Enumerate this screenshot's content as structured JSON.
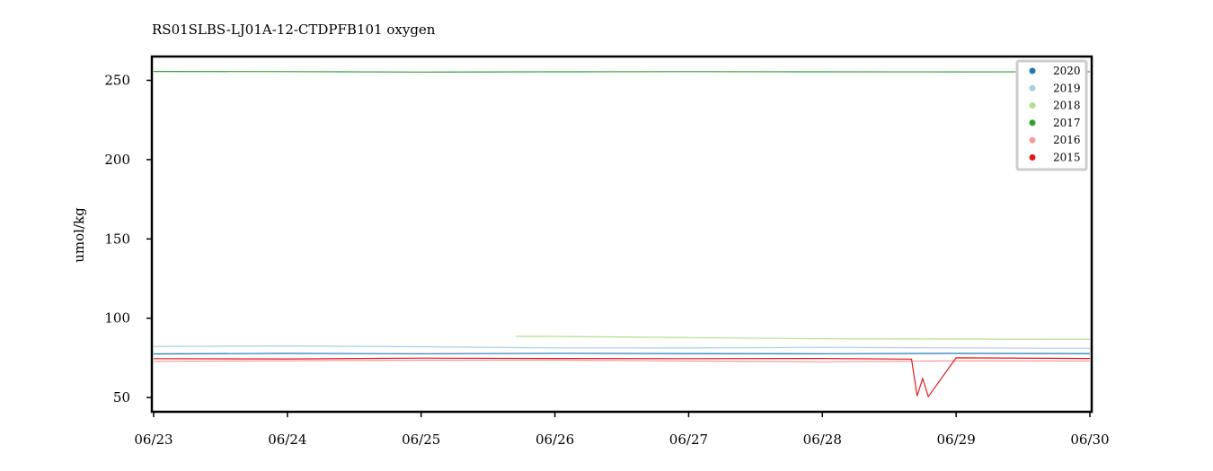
{
  "chart_data": {
    "type": "line",
    "title": "RS01SLBS-LJ01A-12-CTDPFB101 oxygen",
    "xlabel": "",
    "ylabel": "umol/kg",
    "x_ticks": [
      "06/23",
      "06/24",
      "06/25",
      "06/26",
      "06/27",
      "06/28",
      "06/29",
      "06/30"
    ],
    "y_ticks": [
      50,
      100,
      150,
      200,
      250
    ],
    "xlim": [
      "06/23",
      "06/30"
    ],
    "ylim": [
      41,
      265
    ],
    "grid": false,
    "legend_position": "top-right",
    "series": [
      {
        "name": "2020",
        "color": "#1f78b4",
        "x": [
          "06/23",
          "06/24",
          "06/25",
          "06/26",
          "06/27",
          "06/28",
          "06/29",
          "06/30"
        ],
        "y": [
          77.5,
          77.8,
          77.6,
          77.9,
          77.7,
          77.6,
          77.8,
          77.7
        ]
      },
      {
        "name": "2019",
        "color": "#a6cee3",
        "x": [
          "06/23",
          "06/24",
          "06/25",
          "06/26",
          "06/27",
          "06/28",
          "06/29",
          "06/30"
        ],
        "y": [
          82.2,
          82.5,
          82.0,
          81.3,
          81.2,
          81.6,
          81.3,
          81.0
        ]
      },
      {
        "name": "2018",
        "color": "#b2df8a",
        "x": [
          "06/25 17:00",
          "06/26",
          "06/27",
          "06/28",
          "06/29",
          "06/30"
        ],
        "y": [
          88.6,
          88.5,
          87.8,
          87.0,
          86.8,
          86.7
        ]
      },
      {
        "name": "2017",
        "color": "#33a02c",
        "x": [
          "06/23",
          "06/24",
          "06/25",
          "06/26",
          "06/27",
          "06/28",
          "06/29",
          "06/30"
        ],
        "y": [
          255.6,
          255.5,
          255.2,
          255.4,
          255.5,
          255.4,
          255.3,
          255.4
        ]
      },
      {
        "name": "2016",
        "color": "#fb9a99",
        "x": [
          "06/23",
          "06/24",
          "06/25",
          "06/26",
          "06/27",
          "06/28",
          "06/29",
          "06/30"
        ],
        "y": [
          72.8,
          73.2,
          73.5,
          73.6,
          73.0,
          72.5,
          73.2,
          73.0
        ]
      },
      {
        "name": "2015",
        "color": "#e31a1c",
        "x": [
          "06/23",
          "06/24",
          "06/25",
          "06/26",
          "06/27",
          "06/28",
          "06/28 16:00",
          "06/28 17:00",
          "06/28 18:00",
          "06/28 19:00",
          "06/29",
          "06/30"
        ],
        "y": [
          74.5,
          74.3,
          74.8,
          74.6,
          74.5,
          74.6,
          74.2,
          51,
          62,
          50.5,
          75.0,
          74.6
        ]
      }
    ]
  }
}
